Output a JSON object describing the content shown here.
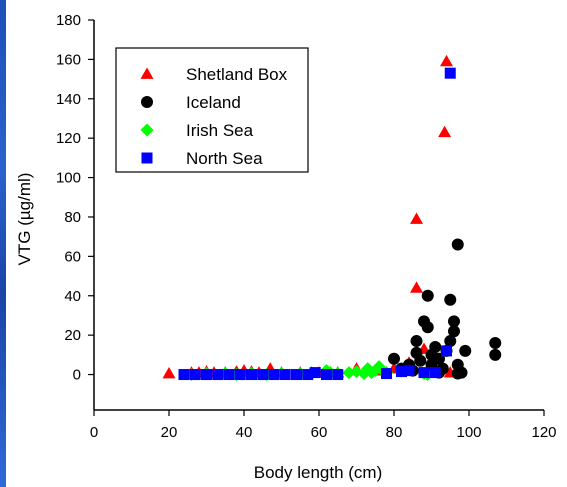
{
  "chart_data": {
    "type": "scatter",
    "title": "",
    "xlabel": "Body length (cm)",
    "ylabel": "VTG (µg/ml)",
    "xlim": [
      0,
      120
    ],
    "ylim": [
      -18,
      180
    ],
    "xticks": [
      "0",
      "20",
      "40",
      "60",
      "80",
      "100",
      "120"
    ],
    "yticks": [
      "0",
      "20",
      "40",
      "60",
      "80",
      "100",
      "120",
      "140",
      "160",
      "180"
    ],
    "grid": false,
    "legend_position": "top-left",
    "series": [
      {
        "name": "Shetland Box",
        "marker": "triangle",
        "color": "#ff0000",
        "points": [
          [
            20,
            0.5
          ],
          [
            26,
            1
          ],
          [
            28,
            1
          ],
          [
            30,
            1.5
          ],
          [
            32,
            1
          ],
          [
            35,
            1
          ],
          [
            38,
            1.5
          ],
          [
            40,
            2
          ],
          [
            42,
            1.5
          ],
          [
            44,
            1
          ],
          [
            47,
            3
          ],
          [
            50,
            1
          ],
          [
            55,
            1
          ],
          [
            60,
            1
          ],
          [
            65,
            1
          ],
          [
            70,
            3
          ],
          [
            76,
            2
          ],
          [
            80,
            3
          ],
          [
            84,
            6
          ],
          [
            86,
            44
          ],
          [
            86,
            79
          ],
          [
            88,
            13
          ],
          [
            90,
            4
          ],
          [
            93.5,
            123
          ],
          [
            94,
            159
          ],
          [
            95,
            1
          ]
        ]
      },
      {
        "name": "Iceland",
        "marker": "circle",
        "color": "#000000",
        "points": [
          [
            80,
            8
          ],
          [
            82,
            3
          ],
          [
            84,
            5
          ],
          [
            85,
            2
          ],
          [
            86,
            17
          ],
          [
            86,
            11
          ],
          [
            87,
            7
          ],
          [
            88,
            27
          ],
          [
            89,
            40
          ],
          [
            89,
            24
          ],
          [
            90,
            10
          ],
          [
            90,
            5
          ],
          [
            91,
            14
          ],
          [
            92,
            8
          ],
          [
            93,
            3
          ],
          [
            94,
            12
          ],
          [
            95,
            38
          ],
          [
            95,
            17
          ],
          [
            96,
            27
          ],
          [
            96,
            22
          ],
          [
            97,
            66
          ],
          [
            97,
            5
          ],
          [
            97,
            0.5
          ],
          [
            99,
            12
          ],
          [
            107,
            16
          ],
          [
            107,
            10
          ],
          [
            98,
            1
          ],
          [
            92,
            1
          ]
        ]
      },
      {
        "name": "Irish Sea",
        "marker": "diamond",
        "color": "#00ff00",
        "points": [
          [
            26,
            0
          ],
          [
            30,
            0.5
          ],
          [
            35,
            0.5
          ],
          [
            38,
            0
          ],
          [
            42,
            0.5
          ],
          [
            46,
            0
          ],
          [
            50,
            0.5
          ],
          [
            55,
            0.5
          ],
          [
            58,
            1
          ],
          [
            62,
            2
          ],
          [
            63,
            1
          ],
          [
            65,
            0.5
          ],
          [
            68,
            1
          ],
          [
            70,
            1.5
          ],
          [
            72,
            0.5
          ],
          [
            73,
            3
          ],
          [
            74,
            1
          ],
          [
            75,
            2
          ],
          [
            76,
            4
          ],
          [
            77,
            2
          ],
          [
            78,
            1
          ],
          [
            88,
            0.5
          ],
          [
            89,
            0
          ]
        ]
      },
      {
        "name": "North Sea",
        "marker": "square",
        "color": "#0000ff",
        "points": [
          [
            24,
            0
          ],
          [
            27,
            0
          ],
          [
            30,
            0
          ],
          [
            33,
            0
          ],
          [
            36,
            0
          ],
          [
            39,
            0
          ],
          [
            42,
            0
          ],
          [
            45,
            0
          ],
          [
            48,
            0
          ],
          [
            51,
            0
          ],
          [
            54,
            0
          ],
          [
            57,
            0
          ],
          [
            59,
            1
          ],
          [
            62,
            0
          ],
          [
            65,
            0
          ],
          [
            78,
            0.5
          ],
          [
            82,
            1.5
          ],
          [
            84,
            2
          ],
          [
            88,
            1
          ],
          [
            91,
            1
          ],
          [
            94,
            12
          ],
          [
            95,
            153
          ]
        ]
      }
    ]
  }
}
